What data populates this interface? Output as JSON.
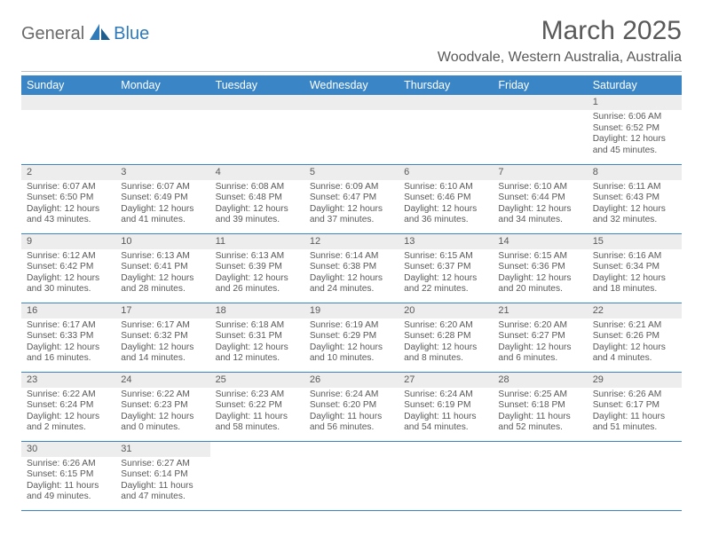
{
  "logo": {
    "part1": "General",
    "part2": "Blue"
  },
  "title": "March 2025",
  "location": "Woodvale, Western Australia, Australia",
  "colors": {
    "header_bg": "#3a85c6",
    "header_fg": "#ffffff",
    "text": "#595959",
    "daynum_bg": "#ededed",
    "row_border": "#3a85c6",
    "logo_gray": "#6a6a6a",
    "logo_blue": "#2f7ab8",
    "hr": "#bfbfbf",
    "page_bg": "#ffffff"
  },
  "typography": {
    "title_fontsize": 30,
    "location_fontsize": 16,
    "dayheader_fontsize": 12.5,
    "daynum_fontsize": 11,
    "body_fontsize": 10.2,
    "logo_fontsize": 20
  },
  "weekdays": [
    "Sunday",
    "Monday",
    "Tuesday",
    "Wednesday",
    "Thursday",
    "Friday",
    "Saturday"
  ],
  "weeks": [
    [
      null,
      null,
      null,
      null,
      null,
      null,
      {
        "n": "1",
        "sunrise": "6:06 AM",
        "sunset": "6:52 PM",
        "daylight": "12 hours and 45 minutes."
      }
    ],
    [
      {
        "n": "2",
        "sunrise": "6:07 AM",
        "sunset": "6:50 PM",
        "daylight": "12 hours and 43 minutes."
      },
      {
        "n": "3",
        "sunrise": "6:07 AM",
        "sunset": "6:49 PM",
        "daylight": "12 hours and 41 minutes."
      },
      {
        "n": "4",
        "sunrise": "6:08 AM",
        "sunset": "6:48 PM",
        "daylight": "12 hours and 39 minutes."
      },
      {
        "n": "5",
        "sunrise": "6:09 AM",
        "sunset": "6:47 PM",
        "daylight": "12 hours and 37 minutes."
      },
      {
        "n": "6",
        "sunrise": "6:10 AM",
        "sunset": "6:46 PM",
        "daylight": "12 hours and 36 minutes."
      },
      {
        "n": "7",
        "sunrise": "6:10 AM",
        "sunset": "6:44 PM",
        "daylight": "12 hours and 34 minutes."
      },
      {
        "n": "8",
        "sunrise": "6:11 AM",
        "sunset": "6:43 PM",
        "daylight": "12 hours and 32 minutes."
      }
    ],
    [
      {
        "n": "9",
        "sunrise": "6:12 AM",
        "sunset": "6:42 PM",
        "daylight": "12 hours and 30 minutes."
      },
      {
        "n": "10",
        "sunrise": "6:13 AM",
        "sunset": "6:41 PM",
        "daylight": "12 hours and 28 minutes."
      },
      {
        "n": "11",
        "sunrise": "6:13 AM",
        "sunset": "6:39 PM",
        "daylight": "12 hours and 26 minutes."
      },
      {
        "n": "12",
        "sunrise": "6:14 AM",
        "sunset": "6:38 PM",
        "daylight": "12 hours and 24 minutes."
      },
      {
        "n": "13",
        "sunrise": "6:15 AM",
        "sunset": "6:37 PM",
        "daylight": "12 hours and 22 minutes."
      },
      {
        "n": "14",
        "sunrise": "6:15 AM",
        "sunset": "6:36 PM",
        "daylight": "12 hours and 20 minutes."
      },
      {
        "n": "15",
        "sunrise": "6:16 AM",
        "sunset": "6:34 PM",
        "daylight": "12 hours and 18 minutes."
      }
    ],
    [
      {
        "n": "16",
        "sunrise": "6:17 AM",
        "sunset": "6:33 PM",
        "daylight": "12 hours and 16 minutes."
      },
      {
        "n": "17",
        "sunrise": "6:17 AM",
        "sunset": "6:32 PM",
        "daylight": "12 hours and 14 minutes."
      },
      {
        "n": "18",
        "sunrise": "6:18 AM",
        "sunset": "6:31 PM",
        "daylight": "12 hours and 12 minutes."
      },
      {
        "n": "19",
        "sunrise": "6:19 AM",
        "sunset": "6:29 PM",
        "daylight": "12 hours and 10 minutes."
      },
      {
        "n": "20",
        "sunrise": "6:20 AM",
        "sunset": "6:28 PM",
        "daylight": "12 hours and 8 minutes."
      },
      {
        "n": "21",
        "sunrise": "6:20 AM",
        "sunset": "6:27 PM",
        "daylight": "12 hours and 6 minutes."
      },
      {
        "n": "22",
        "sunrise": "6:21 AM",
        "sunset": "6:26 PM",
        "daylight": "12 hours and 4 minutes."
      }
    ],
    [
      {
        "n": "23",
        "sunrise": "6:22 AM",
        "sunset": "6:24 PM",
        "daylight": "12 hours and 2 minutes."
      },
      {
        "n": "24",
        "sunrise": "6:22 AM",
        "sunset": "6:23 PM",
        "daylight": "12 hours and 0 minutes."
      },
      {
        "n": "25",
        "sunrise": "6:23 AM",
        "sunset": "6:22 PM",
        "daylight": "11 hours and 58 minutes."
      },
      {
        "n": "26",
        "sunrise": "6:24 AM",
        "sunset": "6:20 PM",
        "daylight": "11 hours and 56 minutes."
      },
      {
        "n": "27",
        "sunrise": "6:24 AM",
        "sunset": "6:19 PM",
        "daylight": "11 hours and 54 minutes."
      },
      {
        "n": "28",
        "sunrise": "6:25 AM",
        "sunset": "6:18 PM",
        "daylight": "11 hours and 52 minutes."
      },
      {
        "n": "29",
        "sunrise": "6:26 AM",
        "sunset": "6:17 PM",
        "daylight": "11 hours and 51 minutes."
      }
    ],
    [
      {
        "n": "30",
        "sunrise": "6:26 AM",
        "sunset": "6:15 PM",
        "daylight": "11 hours and 49 minutes."
      },
      {
        "n": "31",
        "sunrise": "6:27 AM",
        "sunset": "6:14 PM",
        "daylight": "11 hours and 47 minutes."
      },
      null,
      null,
      null,
      null,
      null
    ]
  ],
  "labels": {
    "sunrise": "Sunrise:",
    "sunset": "Sunset:",
    "daylight": "Daylight:"
  }
}
